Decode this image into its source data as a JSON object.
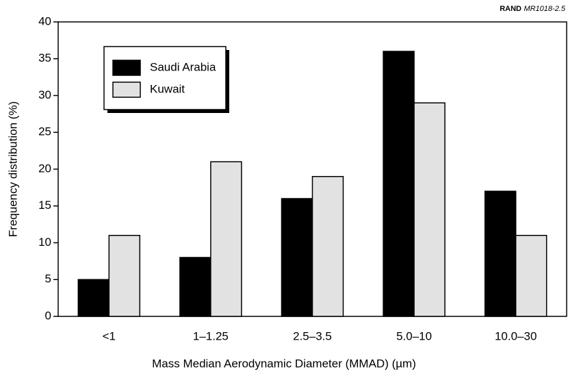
{
  "chart_data": {
    "type": "bar",
    "annotations": [
      "RAND",
      "MR1018-2.5"
    ],
    "x_label": "Mass Median Aerodynamic Diameter (MMAD) (µm)",
    "y_label": "Frequency distribution (%)",
    "categories": [
      "<1",
      "1–1.25",
      "2.5–3.5",
      "5.0–10",
      "10.0–30"
    ],
    "series": [
      {
        "name": "Saudi Arabia",
        "color": "#000000",
        "values": [
          5,
          8,
          16,
          36,
          17
        ]
      },
      {
        "name": "Kuwait",
        "color": "#e2e2e2",
        "values": [
          11,
          21,
          19,
          29,
          11
        ]
      }
    ],
    "ylim": [
      0,
      40
    ],
    "yticks": [
      0,
      5,
      10,
      15,
      20,
      25,
      30,
      35,
      40
    ],
    "legend": "upper left"
  }
}
